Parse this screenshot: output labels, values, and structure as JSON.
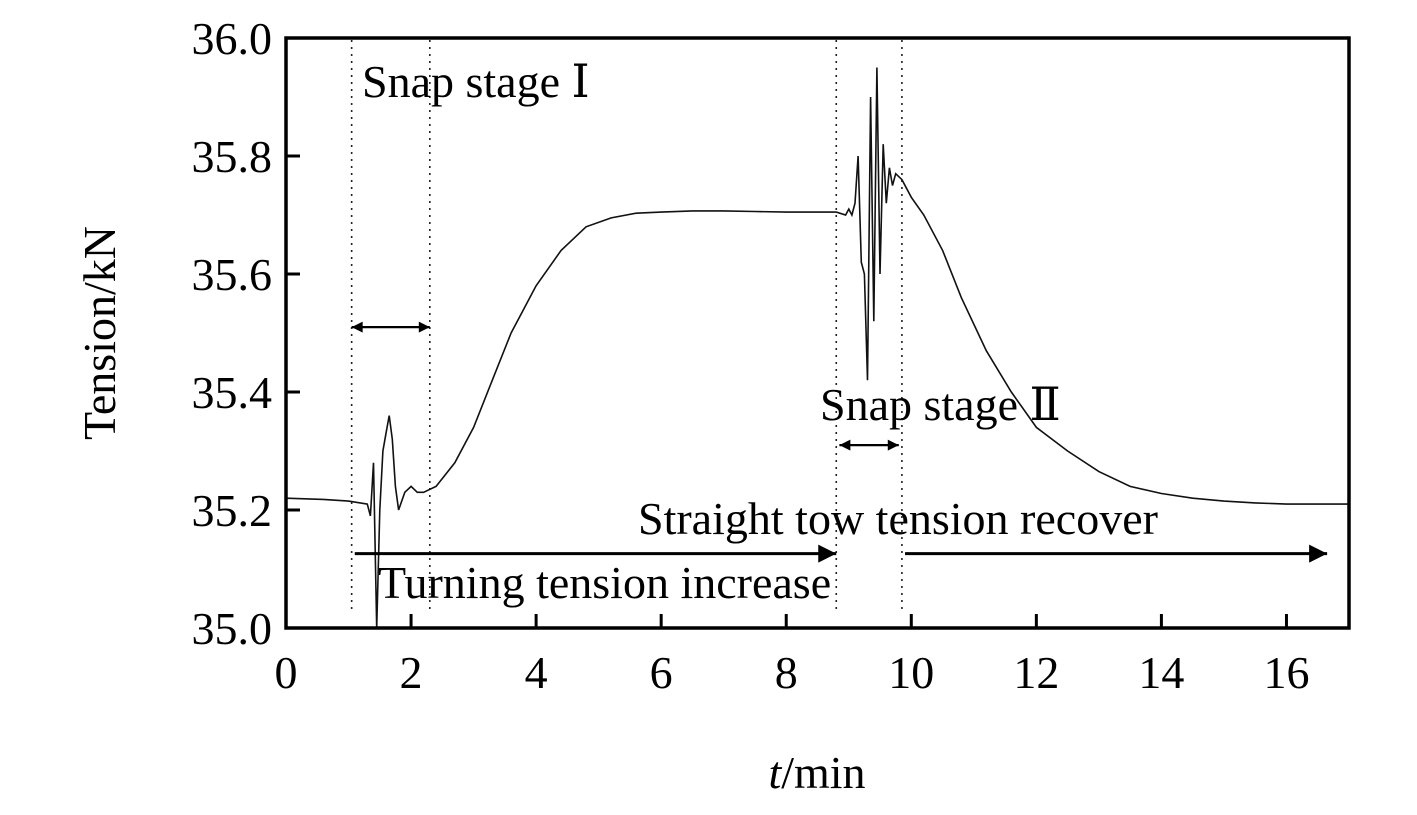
{
  "chart_data": {
    "type": "line",
    "title": "",
    "xlabel_italic": "t",
    "xlabel_rest": "/min",
    "ylabel": "Tension/kN",
    "xlim": [
      0,
      17
    ],
    "ylim": [
      35.0,
      36.0
    ],
    "x_ticks": [
      0,
      2,
      4,
      6,
      8,
      10,
      12,
      14,
      16
    ],
    "x_tick_labels": [
      "0",
      "2",
      "4",
      "6",
      "8",
      "10",
      "12",
      "14",
      "16"
    ],
    "y_ticks": [
      35.0,
      35.2,
      35.4,
      35.6,
      35.8,
      36.0
    ],
    "y_tick_labels": [
      "35.0",
      "35.2",
      "35.4",
      "35.6",
      "35.8",
      "36.0"
    ],
    "grid": false,
    "series": [
      {
        "x": [
          0,
          0.6,
          1.0,
          1.3,
          1.35,
          1.4,
          1.45,
          1.5,
          1.55,
          1.6,
          1.65,
          1.7,
          1.75,
          1.8,
          1.9,
          2.0,
          2.1,
          2.2,
          2.4,
          2.7,
          3.0,
          3.3,
          3.6,
          4.0,
          4.4,
          4.8,
          5.2,
          5.6,
          6.0,
          6.5,
          7.0,
          7.5,
          8.0,
          8.5,
          8.8,
          8.95,
          9.0,
          9.05,
          9.1,
          9.15,
          9.2,
          9.25,
          9.3,
          9.35,
          9.4,
          9.45,
          9.5,
          9.55,
          9.6,
          9.65,
          9.7,
          9.75,
          9.85,
          10.0,
          10.2,
          10.5,
          10.8,
          11.2,
          11.6,
          12.0,
          12.5,
          13.0,
          13.5,
          14.0,
          14.5,
          15.0,
          15.5,
          16.0,
          16.5,
          17.0
        ],
        "y": [
          35.22,
          35.218,
          35.215,
          35.21,
          35.19,
          35.28,
          35.0,
          35.2,
          35.3,
          35.33,
          35.36,
          35.32,
          35.24,
          35.2,
          35.23,
          35.24,
          35.23,
          35.23,
          35.24,
          35.28,
          35.34,
          35.42,
          35.5,
          35.58,
          35.64,
          35.68,
          35.695,
          35.703,
          35.705,
          35.707,
          35.707,
          35.706,
          35.705,
          35.705,
          35.705,
          35.7,
          35.71,
          35.7,
          35.72,
          35.8,
          35.62,
          35.6,
          35.42,
          35.9,
          35.52,
          35.95,
          35.6,
          35.82,
          35.72,
          35.78,
          35.75,
          35.77,
          35.76,
          35.73,
          35.7,
          35.64,
          35.56,
          35.47,
          35.4,
          35.34,
          35.3,
          35.265,
          35.24,
          35.228,
          35.22,
          35.215,
          35.212,
          35.21,
          35.21,
          35.21
        ]
      }
    ],
    "annotations": {
      "snap_stage_1": "Snap stage  Ⅰ",
      "snap_stage_2": "Snap stage Ⅱ",
      "straight_tow": "Straight tow tension recover",
      "turning": "Turning tension increase"
    },
    "stage_boundaries_min": [
      1.05,
      2.3,
      8.8,
      9.85
    ],
    "arrows": [
      {
        "type": "double",
        "from": 1.05,
        "to": 2.3,
        "y": 35.51
      },
      {
        "type": "double",
        "from": 8.85,
        "to": 9.8,
        "y": 35.31
      },
      {
        "type": "single",
        "from": 1.1,
        "to": 8.8,
        "y": 35.126
      },
      {
        "type": "single",
        "from": 9.9,
        "to": 16.65,
        "y": 35.126
      }
    ]
  }
}
